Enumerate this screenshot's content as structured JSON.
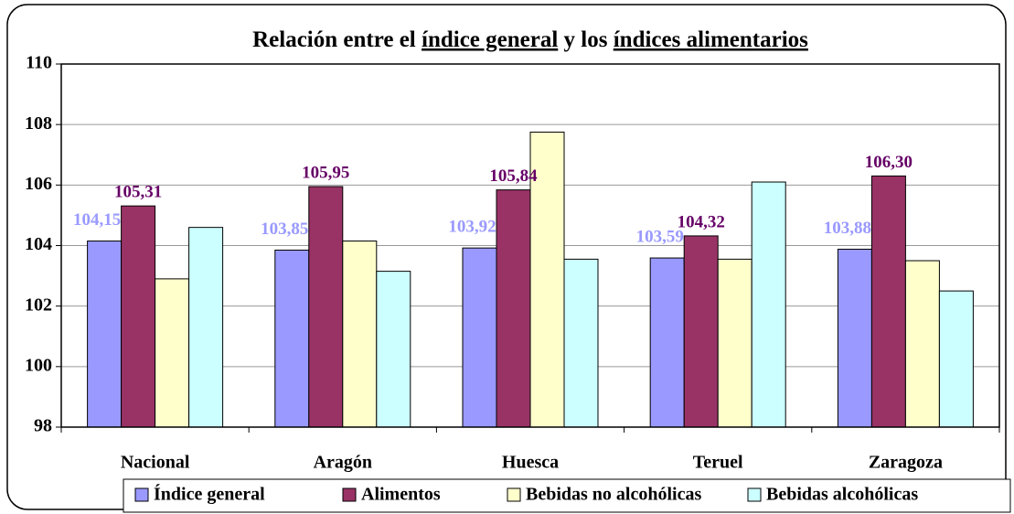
{
  "chart_data": {
    "type": "bar",
    "title_parts": [
      {
        "text": "Relación entre el ",
        "underline": false
      },
      {
        "text": "índice general",
        "underline": true
      },
      {
        "text": " y los ",
        "underline": false
      },
      {
        "text": "índices alimentarios",
        "underline": true
      }
    ],
    "categories": [
      "Nacional",
      "Aragón",
      "Huesca",
      "Teruel",
      "Zaragoza"
    ],
    "series": [
      {
        "name": "Índice general",
        "color": "#9999ff",
        "label_color": "#9999ff",
        "values": [
          104.15,
          103.85,
          103.92,
          103.59,
          103.88
        ],
        "value_labels": [
          "104,15",
          "103,85",
          "103,92",
          "103,59",
          "103,88"
        ]
      },
      {
        "name": "Alimentos",
        "color": "#993366",
        "label_color": "#660066",
        "values": [
          105.31,
          105.95,
          105.84,
          104.32,
          106.3
        ],
        "value_labels": [
          "105,31",
          "105,95",
          "105,84",
          "104,32",
          "106,30"
        ]
      },
      {
        "name": "Bebidas no alcohólicas",
        "color": "#ffffcc",
        "values": [
          102.9,
          104.15,
          107.75,
          103.55,
          103.5
        ]
      },
      {
        "name": "Bebidas alcohólicas",
        "color": "#ccffff",
        "values": [
          104.6,
          103.15,
          103.55,
          106.1,
          102.5
        ]
      }
    ],
    "ylim": [
      98,
      110
    ],
    "yticks": [
      98,
      100,
      102,
      104,
      106,
      108,
      110
    ],
    "grid": true,
    "legend": "bottom"
  }
}
